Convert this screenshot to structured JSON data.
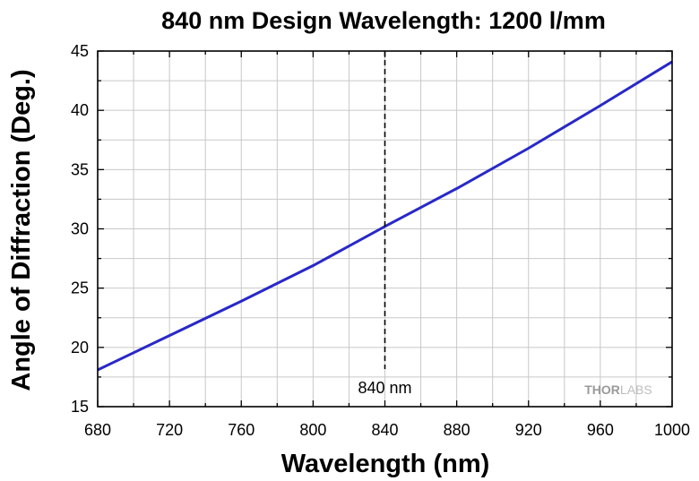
{
  "chart_data": {
    "type": "line",
    "title": "840 nm Design Wavelength: 1200 l/mm",
    "xlabel": "Wavelength (nm)",
    "ylabel": "Angle of Diffraction (Deg.)",
    "xlim": [
      680,
      1000
    ],
    "ylim": [
      15,
      45
    ],
    "x_ticks": [
      680,
      720,
      760,
      800,
      840,
      880,
      920,
      960,
      1000
    ],
    "y_ticks": [
      15,
      20,
      25,
      30,
      35,
      40,
      45
    ],
    "grid": true,
    "series": [
      {
        "color": "#2828c8",
        "x": [
          680,
          720,
          760,
          800,
          840,
          880,
          920,
          960,
          1000
        ],
        "y": [
          18.1,
          21.0,
          23.9,
          26.9,
          30.2,
          33.4,
          36.8,
          40.4,
          44.1
        ]
      }
    ],
    "annotations": [
      {
        "x": 840,
        "text": "840 nm",
        "style": "dashed-vertical-line"
      }
    ]
  },
  "watermark": {
    "text_a": "THOR",
    "text_b": "LABS"
  }
}
